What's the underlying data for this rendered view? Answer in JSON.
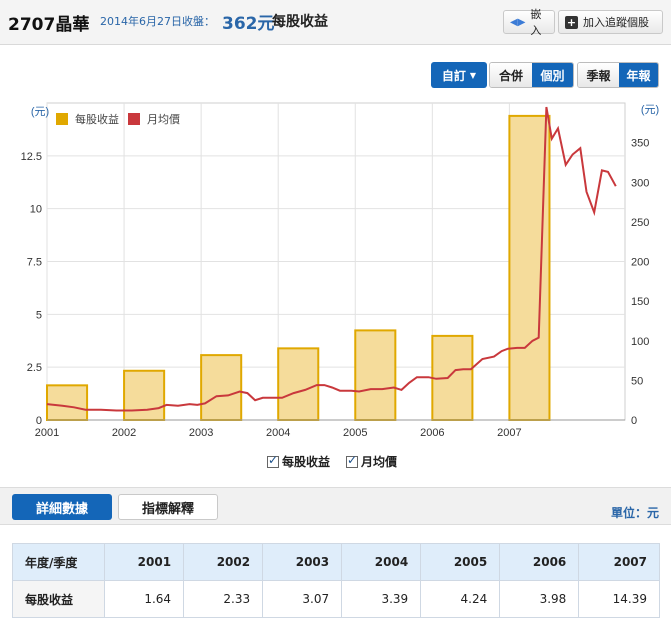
{
  "header": {
    "stock": "2707晶華",
    "date_text": "2014年6月27日收盤：",
    "price": "362元",
    "metric": "每股收益",
    "embed_label": "嵌入",
    "track_label": "加入追蹤個股"
  },
  "controls": {
    "custom_label": "自訂",
    "combined_label": "合併",
    "individual_label": "個別",
    "quarterly_label": "季報",
    "annual_label": "年報"
  },
  "chart_data": {
    "type": "bar",
    "left_unit": "(元)",
    "right_unit": "(元)",
    "years": [
      "2001",
      "2002",
      "2003",
      "2004",
      "2005",
      "2006",
      "2007"
    ],
    "eps": [
      1.64,
      2.33,
      3.07,
      3.39,
      4.24,
      3.98,
      14.39
    ],
    "left_ticks": [
      "0",
      "2.5",
      "5",
      "7.5",
      "10",
      "12.5"
    ],
    "left_ylim": [
      0,
      15
    ],
    "right_ticks": [
      "0",
      "50",
      "100",
      "150",
      "200",
      "250",
      "300",
      "350"
    ],
    "right_ylim": [
      0,
      400
    ],
    "legend": [
      "每股收益",
      "月均價"
    ],
    "bar_color": "#f5dc9b",
    "bar_border": "#e0a800",
    "line_color": "#c9383c",
    "price_series": {
      "name": "月均價",
      "points": [
        [
          2001.0,
          20
        ],
        [
          2001.2,
          18
        ],
        [
          2001.35,
          16
        ],
        [
          2001.5,
          13
        ],
        [
          2001.7,
          13
        ],
        [
          2001.9,
          12
        ],
        [
          2002.1,
          12
        ],
        [
          2002.3,
          13
        ],
        [
          2002.45,
          15
        ],
        [
          2002.55,
          19
        ],
        [
          2002.7,
          18
        ],
        [
          2002.85,
          20
        ],
        [
          2002.95,
          19
        ],
        [
          2003.05,
          21
        ],
        [
          2003.2,
          30
        ],
        [
          2003.35,
          31
        ],
        [
          2003.5,
          36
        ],
        [
          2003.6,
          34
        ],
        [
          2003.7,
          25
        ],
        [
          2003.8,
          28
        ],
        [
          2003.95,
          28
        ],
        [
          2004.05,
          28
        ],
        [
          2004.2,
          34
        ],
        [
          2004.35,
          38
        ],
        [
          2004.5,
          44
        ],
        [
          2004.6,
          44
        ],
        [
          2004.7,
          41
        ],
        [
          2004.8,
          37
        ],
        [
          2004.95,
          37
        ],
        [
          2005.05,
          36
        ],
        [
          2005.2,
          39
        ],
        [
          2005.35,
          39
        ],
        [
          2005.5,
          41
        ],
        [
          2005.6,
          38
        ],
        [
          2005.7,
          47
        ],
        [
          2005.8,
          54
        ],
        [
          2005.95,
          54
        ],
        [
          2006.05,
          52
        ],
        [
          2006.2,
          53
        ],
        [
          2006.3,
          63
        ],
        [
          2006.4,
          64
        ],
        [
          2006.5,
          64
        ],
        [
          2006.65,
          77
        ],
        [
          2006.8,
          80
        ],
        [
          2006.9,
          87
        ],
        [
          2006.98,
          90
        ],
        [
          2007.1,
          91
        ],
        [
          2007.2,
          91
        ],
        [
          2007.3,
          100
        ],
        [
          2007.38,
          104
        ],
        [
          2007.48,
          395
        ],
        [
          2007.55,
          355
        ],
        [
          2007.63,
          368
        ],
        [
          2007.73,
          322
        ],
        [
          2007.82,
          335
        ],
        [
          2007.92,
          343
        ],
        [
          2008.0,
          288
        ],
        [
          2008.1,
          262
        ],
        [
          2008.2,
          315
        ],
        [
          2008.28,
          313
        ],
        [
          2008.38,
          295
        ]
      ]
    }
  },
  "checkbox_legend": {
    "eps": "每股收益",
    "price": "月均價"
  },
  "tabs": {
    "detail": "詳細數據",
    "explain": "指標解釋",
    "unit": "單位：元"
  },
  "table": {
    "header_label": "年度/季度",
    "row_label": "每股收益",
    "years": [
      "2001",
      "2002",
      "2003",
      "2004",
      "2005",
      "2006",
      "2007"
    ],
    "values": [
      "1.64",
      "2.33",
      "3.07",
      "3.39",
      "4.24",
      "3.98",
      "14.39"
    ]
  }
}
